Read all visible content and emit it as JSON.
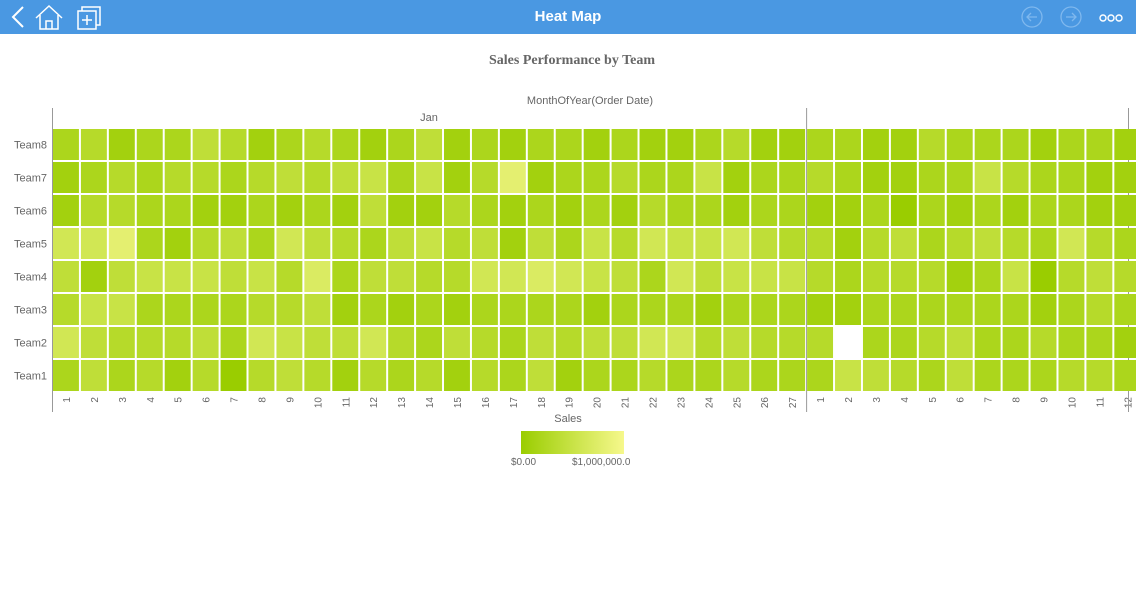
{
  "header": {
    "title": "Heat Map"
  },
  "chart_data": {
    "type": "heatmap",
    "title": "Sales Performance by Team",
    "x_label": "MonthOfYear(Order Date)",
    "x_groups": [
      {
        "label": "Jan",
        "categories": [
          "1",
          "2",
          "3",
          "4",
          "5",
          "6",
          "7",
          "8",
          "9",
          "10",
          "11",
          "12",
          "13",
          "14",
          "15",
          "16",
          "17",
          "18",
          "19",
          "20",
          "21",
          "22",
          "23",
          "24",
          "25",
          "26",
          "27"
        ]
      },
      {
        "label": null,
        "categories": [
          "1",
          "2",
          "3",
          "4",
          "5",
          "6",
          "7",
          "8",
          "9",
          "10",
          "11",
          "12"
        ]
      }
    ],
    "series": [
      {
        "name": "Team8",
        "values": [
          200000.0,
          300000.0,
          100000.0,
          200000.0,
          200000.0,
          400000.0,
          300000.0,
          100000.0,
          200000.0,
          300000.0,
          200000.0,
          100000.0,
          200000.0,
          400000.0,
          100000.0,
          200000.0,
          100000.0,
          200000.0,
          200000.0,
          100000.0,
          200000.0,
          100000.0,
          100000.0,
          200000.0,
          300000.0,
          100000.0,
          100000.0,
          200000.0,
          200000.0,
          100000.0,
          100000.0,
          300000.0,
          200000.0,
          200000.0,
          200000.0,
          100000.0,
          200000.0,
          200000.0,
          100000.0
        ]
      },
      {
        "name": "Team7",
        "values": [
          100000.0,
          200000.0,
          300000.0,
          200000.0,
          300000.0,
          300000.0,
          200000.0,
          300000.0,
          400000.0,
          300000.0,
          400000.0,
          500000.0,
          200000.0,
          500000.0,
          100000.0,
          300000.0,
          800000.0,
          100000.0,
          200000.0,
          200000.0,
          300000.0,
          200000.0,
          200000.0,
          500000.0,
          100000.0,
          200000.0,
          200000.0,
          300000.0,
          200000.0,
          100000.0,
          100000.0,
          200000.0,
          200000.0,
          500000.0,
          300000.0,
          200000.0,
          200000.0,
          100000.0,
          100000.0
        ]
      },
      {
        "name": "Team6",
        "values": [
          100000.0,
          300000.0,
          300000.0,
          200000.0,
          200000.0,
          100000.0,
          100000.0,
          200000.0,
          100000.0,
          200000.0,
          100000.0,
          400000.0,
          100000.0,
          100000.0,
          300000.0,
          200000.0,
          100000.0,
          200000.0,
          100000.0,
          200000.0,
          100000.0,
          300000.0,
          200000.0,
          200000.0,
          100000.0,
          200000.0,
          200000.0,
          100000.0,
          100000.0,
          200000.0,
          0,
          200000.0,
          100000.0,
          200000.0,
          100000.0,
          200000.0,
          200000.0,
          100000.0,
          100000.0
        ]
      },
      {
        "name": "Team5",
        "values": [
          600000.0,
          600000.0,
          800000.0,
          200000.0,
          100000.0,
          300000.0,
          400000.0,
          200000.0,
          600000.0,
          400000.0,
          300000.0,
          200000.0,
          400000.0,
          500000.0,
          300000.0,
          400000.0,
          100000.0,
          400000.0,
          200000.0,
          500000.0,
          300000.0,
          600000.0,
          500000.0,
          500000.0,
          600000.0,
          400000.0,
          300000.0,
          300000.0,
          100000.0,
          300000.0,
          400000.0,
          200000.0,
          300000.0,
          400000.0,
          300000.0,
          200000.0,
          600000.0,
          300000.0,
          200000.0
        ]
      },
      {
        "name": "Team4",
        "values": [
          400000.0,
          100000.0,
          400000.0,
          500000.0,
          500000.0,
          500000.0,
          400000.0,
          500000.0,
          300000.0,
          700000.0,
          200000.0,
          400000.0,
          400000.0,
          300000.0,
          300000.0,
          600000.0,
          600000.0,
          700000.0,
          600000.0,
          500000.0,
          400000.0,
          200000.0,
          600000.0,
          400000.0,
          500000.0,
          500000.0,
          500000.0,
          300000.0,
          200000.0,
          300000.0,
          300000.0,
          300000.0,
          100000.0,
          200000.0,
          500000.0,
          0,
          300000.0,
          400000.0,
          300000.0
        ]
      },
      {
        "name": "Team3",
        "values": [
          300000.0,
          500000.0,
          500000.0,
          200000.0,
          200000.0,
          200000.0,
          200000.0,
          300000.0,
          300000.0,
          400000.0,
          100000.0,
          200000.0,
          100000.0,
          200000.0,
          100000.0,
          200000.0,
          200000.0,
          200000.0,
          200000.0,
          100000.0,
          200000.0,
          200000.0,
          200000.0,
          100000.0,
          200000.0,
          200000.0,
          200000.0,
          100000.0,
          100000.0,
          200000.0,
          200000.0,
          200000.0,
          200000.0,
          200000.0,
          200000.0,
          100000.0,
          200000.0,
          300000.0,
          200000.0
        ]
      },
      {
        "name": "Team2",
        "values": [
          600000.0,
          400000.0,
          300000.0,
          300000.0,
          300000.0,
          400000.0,
          200000.0,
          600000.0,
          500000.0,
          400000.0,
          400000.0,
          600000.0,
          300000.0,
          200000.0,
          400000.0,
          300000.0,
          200000.0,
          400000.0,
          300000.0,
          400000.0,
          400000.0,
          600000.0,
          600000.0,
          300000.0,
          400000.0,
          300000.0,
          300000.0,
          300000.0,
          null,
          200000.0,
          200000.0,
          300000.0,
          400000.0,
          200000.0,
          200000.0,
          300000.0,
          200000.0,
          200000.0,
          100000.0
        ]
      },
      {
        "name": "Team1",
        "values": [
          200000.0,
          400000.0,
          200000.0,
          300000.0,
          100000.0,
          300000.0,
          0,
          300000.0,
          400000.0,
          300000.0,
          100000.0,
          300000.0,
          200000.0,
          300000.0,
          100000.0,
          300000.0,
          200000.0,
          400000.0,
          100000.0,
          200000.0,
          200000.0,
          300000.0,
          200000.0,
          200000.0,
          300000.0,
          200000.0,
          200000.0,
          200000.0,
          500000.0,
          400000.0,
          300000.0,
          200000.0,
          400000.0,
          200000.0,
          200000.0,
          200000.0,
          300000.0,
          300000.0,
          200000.0
        ]
      }
    ],
    "legend": {
      "title": "Sales",
      "clim": [
        0,
        1000000
      ],
      "colors": [
        "#9acd00",
        "#f6f88c"
      ],
      "ticks": [
        {
          "value": 0,
          "label": "$0.00"
        },
        {
          "value": 1000000,
          "label": "$1,000,000.0"
        }
      ]
    }
  }
}
